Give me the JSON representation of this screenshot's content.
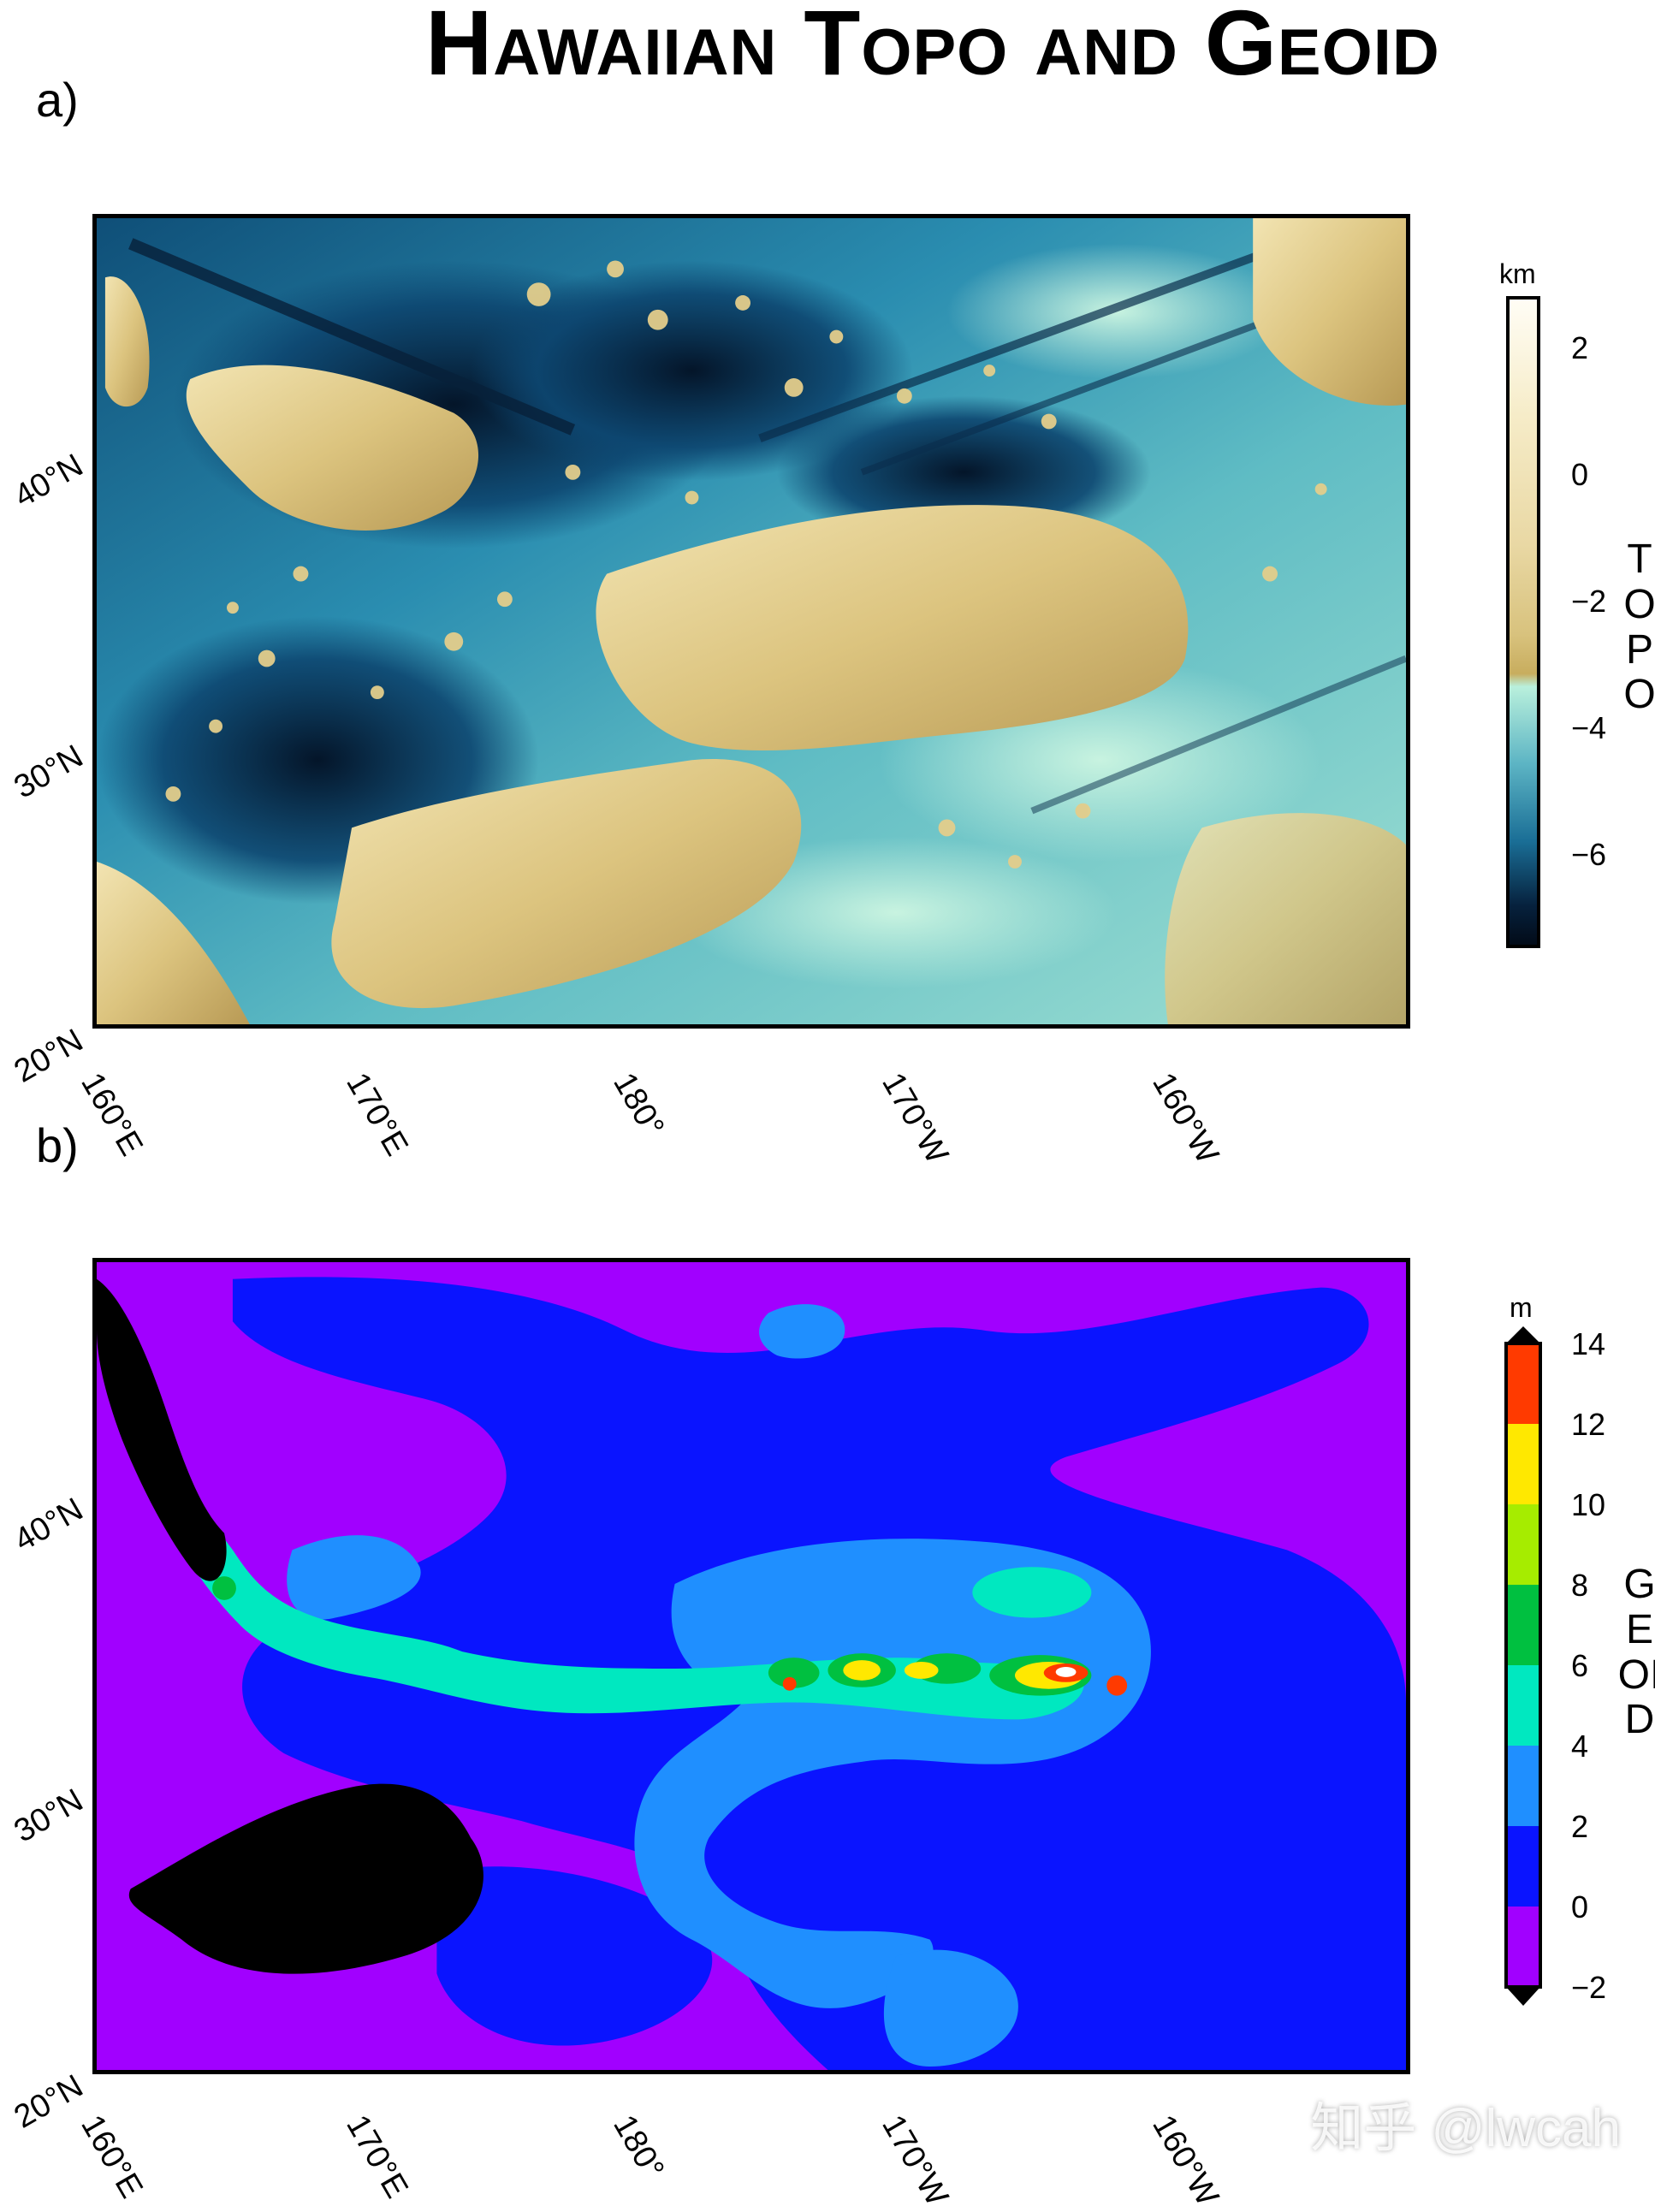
{
  "title": "Hawaiian Topo and Geoid",
  "watermark": "知乎 @lwcah",
  "colors": {
    "topo_deep": "#061a33",
    "topo_mid": "#1a6e96",
    "topo_shallow": "#b8eedc",
    "topo_seamount": "#e7d59a",
    "geoid_low": "#a100ff",
    "geoid_zero": "#0a14ff",
    "geoid_two": "#1f8fff",
    "geoid_four": "#00e8c0",
    "geoid_six": "#00c040",
    "geoid_ten": "#ffe800",
    "geoid_high": "#ff3a00",
    "land_mask": "#000000"
  },
  "panels": [
    {
      "letter": "a)",
      "map": {
        "type": "heatmap",
        "title": "",
        "xlabel": "",
        "ylabel": "",
        "x_ticks": [
          "160°E",
          "170°E",
          "180°",
          "170°W",
          "160°W"
        ],
        "y_ticks": [
          "20°N",
          "30°N",
          "40°N"
        ],
        "xlim": [
          160,
          210
        ],
        "ylim": [
          20,
          48
        ],
        "colorbar": {
          "label": "TOPO",
          "unit": "km",
          "ticks": [
            "2",
            "0",
            "−2",
            "−4",
            "−6"
          ],
          "range": [
            -7.3,
            2.9
          ]
        }
      }
    },
    {
      "letter": "b)",
      "map": {
        "type": "heatmap",
        "title": "",
        "xlabel": "",
        "ylabel": "",
        "x_ticks": [
          "160°E",
          "170°E",
          "180°",
          "170°W",
          "160°W"
        ],
        "y_ticks": [
          "20°N",
          "30°N",
          "40°N"
        ],
        "xlim": [
          160,
          210
        ],
        "ylim": [
          20,
          48
        ],
        "colorbar": {
          "label": "GEOID",
          "unit": "m",
          "ticks": [
            "14",
            "12",
            "10",
            "8",
            "6",
            "4",
            "2",
            "0",
            "−2"
          ],
          "range": [
            -2,
            14
          ]
        }
      }
    }
  ],
  "chart_data": [
    {
      "type": "heatmap",
      "title": "Hawaiian Topo and Geoid",
      "variable": "TOPO",
      "unit": "km",
      "x_ticks": [
        "160°E",
        "170°E",
        "180°",
        "170°W",
        "160°W"
      ],
      "y_ticks": [
        "20°N",
        "30°N",
        "40°N"
      ],
      "colorbar_ticks": [
        2,
        0,
        -2,
        -4,
        -6
      ],
      "grid": false,
      "legend": "right"
    },
    {
      "type": "heatmap",
      "variable": "GEOID",
      "unit": "m",
      "x_ticks": [
        "160°E",
        "170°E",
        "180°",
        "170°W",
        "160°W"
      ],
      "y_ticks": [
        "20°N",
        "30°N",
        "40°N"
      ],
      "colorbar_ticks": [
        14,
        12,
        10,
        8,
        6,
        4,
        2,
        0,
        -2
      ],
      "grid": false,
      "legend": "right"
    }
  ]
}
